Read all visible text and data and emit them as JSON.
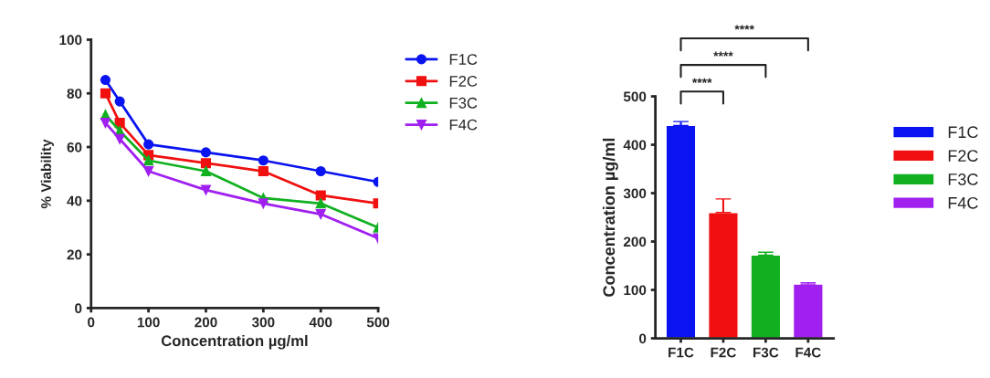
{
  "chart_data": [
    {
      "type": "line",
      "xlabel": "Concentration µg/ml",
      "ylabel": "% Viability",
      "x": [
        25,
        50,
        100,
        200,
        300,
        400,
        500
      ],
      "series": [
        {
          "name": "F1C",
          "color": "#0a14f0",
          "values": [
            85,
            77,
            61,
            58,
            55,
            51,
            47
          ],
          "marker": "circle"
        },
        {
          "name": "F2C",
          "color": "#f01010",
          "values": [
            80,
            69,
            57,
            54,
            51,
            42,
            39
          ],
          "marker": "square"
        },
        {
          "name": "F3C",
          "color": "#10b020",
          "values": [
            72,
            66,
            55,
            51,
            41,
            39,
            30
          ],
          "marker": "triangle"
        },
        {
          "name": "F4C",
          "color": "#a020f0",
          "values": [
            69,
            63,
            51,
            44,
            39,
            35,
            26
          ],
          "marker": "triangle_down"
        }
      ],
      "xlim": [
        0,
        500
      ],
      "xticks": [
        0,
        100,
        200,
        300,
        400,
        500
      ],
      "ylim": [
        0,
        100
      ],
      "yticks": [
        0,
        20,
        40,
        60,
        80,
        100
      ],
      "grid": false,
      "legend": "right"
    },
    {
      "type": "bar",
      "ylabel": "Concentration µg/ml",
      "categories": [
        "F1C",
        "F2C",
        "F3C",
        "F4C"
      ],
      "series": [
        {
          "name": "F1C",
          "color": "#0a14f0",
          "values": [
            440,
            null,
            null,
            null
          ],
          "errors": [
            [
              440,
              448
            ],
            null,
            null,
            null
          ]
        },
        {
          "name": "F2C",
          "color": "#f01010",
          "values": [
            null,
            260,
            null,
            null
          ],
          "errors": [
            null,
            [
              260,
              288
            ],
            null,
            null
          ]
        },
        {
          "name": "F3C",
          "color": "#10b020",
          "values": [
            null,
            null,
            172,
            null
          ],
          "errors": [
            null,
            null,
            [
              172,
              178
            ],
            null
          ]
        },
        {
          "name": "F4C",
          "color": "#a020f0",
          "values": [
            null,
            null,
            null,
            112
          ],
          "errors": [
            null,
            null,
            null,
            [
              112,
              115
            ]
          ]
        }
      ],
      "ylim": [
        0,
        500
      ],
      "yticks": [
        0,
        100,
        200,
        300,
        400,
        500
      ],
      "grid": false,
      "legend": "right",
      "annotations": [
        "****",
        "****",
        "****"
      ]
    }
  ]
}
